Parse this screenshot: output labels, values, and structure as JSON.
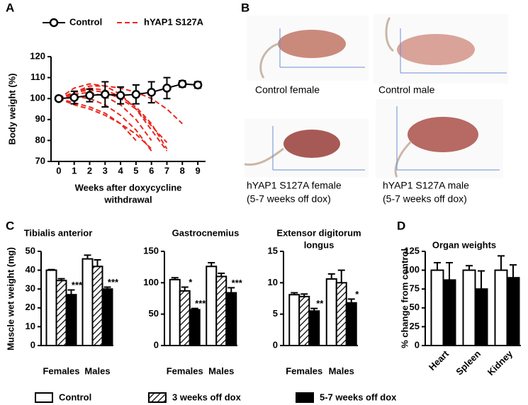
{
  "chart_data": [
    {
      "type": "line",
      "panel": "A",
      "ylabel": "Body weight (%)",
      "xlabel_lines": [
        "Weeks after doxycycline",
        "withdrawal"
      ],
      "x": [
        0,
        1,
        2,
        3,
        4,
        5,
        6,
        7,
        8,
        9
      ],
      "xlim": [
        -0.5,
        9.5
      ],
      "xticks": [
        0,
        1,
        2,
        3,
        4,
        5,
        6,
        7,
        8,
        9
      ],
      "ylim": [
        70,
        120
      ],
      "yticks": [
        70,
        80,
        90,
        100,
        110,
        120
      ],
      "series": [
        {
          "name": "Control",
          "color": "#000000",
          "values": [
            100,
            100.5,
            101.5,
            102,
            101.5,
            102,
            103,
            105,
            107,
            106.5
          ],
          "errors": [
            0,
            3,
            3,
            6,
            4,
            4.5,
            5,
            5,
            1.5,
            1.5
          ]
        },
        {
          "name": "hYAP1 S127A",
          "color": "#e8281e",
          "lines": [
            [
              100,
              103,
              106,
              106,
              105,
              103,
              100,
              95,
              88,
              null
            ],
            [
              100,
              103,
              105,
              104,
              101,
              96,
              88,
              76,
              null,
              null
            ],
            [
              100,
              102,
              103,
              101,
              97,
              90,
              80,
              null,
              null,
              null
            ],
            [
              100,
              101,
              100,
              97,
              92,
              85,
              75,
              null,
              null,
              null
            ],
            [
              100,
              98,
              96,
              93,
              88,
              80,
              null,
              null,
              null,
              null
            ],
            [
              100,
              103,
              104,
              103,
              100,
              95,
              87,
              79,
              null,
              null
            ],
            [
              100,
              97,
              95,
              92,
              88,
              83,
              76,
              null,
              null,
              null
            ],
            [
              100,
              105,
              107,
              106,
              102,
              95,
              85,
              75,
              null,
              null
            ]
          ]
        }
      ]
    },
    {
      "type": "bar",
      "panel": "C",
      "title_lines": [
        "Tibialis anterior"
      ],
      "categories": [
        "Females",
        "Males"
      ],
      "ylim": [
        0,
        50
      ],
      "yticks": [
        0,
        10,
        20,
        30,
        40,
        50
      ],
      "series": [
        {
          "fill": "white",
          "values": [
            40,
            46
          ],
          "errors": [
            0.3,
            2
          ],
          "significance": [
            null,
            null
          ]
        },
        {
          "fill": "hatch",
          "values": [
            34.5,
            42
          ],
          "errors": [
            1,
            3.5
          ],
          "significance": [
            null,
            null
          ]
        },
        {
          "fill": "black",
          "values": [
            27,
            30
          ],
          "errors": [
            2.5,
            1
          ],
          "significance": [
            "***",
            "***"
          ]
        }
      ]
    },
    {
      "type": "bar",
      "title_lines": [
        "Gastrocnemius"
      ],
      "categories": [
        "Females",
        "Males"
      ],
      "ylim": [
        0,
        150
      ],
      "yticks": [
        0,
        50,
        100,
        150
      ],
      "series": [
        {
          "fill": "white",
          "values": [
            105,
            126
          ],
          "errors": [
            3,
            6
          ],
          "significance": [
            null,
            null
          ]
        },
        {
          "fill": "hatch",
          "values": [
            87,
            110
          ],
          "errors": [
            6,
            5
          ],
          "significance": [
            "*",
            null
          ]
        },
        {
          "fill": "black",
          "values": [
            57,
            84
          ],
          "errors": [
            2,
            8
          ],
          "significance": [
            "***",
            "***"
          ]
        }
      ]
    },
    {
      "type": "bar",
      "title_lines": [
        "Extensor digitorum",
        "longus"
      ],
      "categories": [
        "Females",
        "Males"
      ],
      "ylim": [
        0,
        15
      ],
      "yticks": [
        0,
        5,
        10,
        15
      ],
      "series": [
        {
          "fill": "white",
          "values": [
            8.1,
            10.6
          ],
          "errors": [
            0.3,
            0.8
          ],
          "significance": [
            null,
            null
          ]
        },
        {
          "fill": "hatch",
          "values": [
            7.8,
            10
          ],
          "errors": [
            0.4,
            2
          ],
          "significance": [
            null,
            null
          ]
        },
        {
          "fill": "black",
          "values": [
            5.5,
            6.8
          ],
          "errors": [
            0.4,
            0.6
          ],
          "significance": [
            "**",
            "*"
          ]
        }
      ]
    },
    {
      "type": "bar",
      "panel": "D",
      "title_lines": [
        "Organ weights"
      ],
      "ylabel": "% change from control",
      "categories": [
        "Heart",
        "Spleen",
        "Kidney"
      ],
      "rotate_labels": true,
      "ylim": [
        0,
        125
      ],
      "yticks": [
        0,
        25,
        50,
        75,
        100,
        125
      ],
      "series": [
        {
          "fill": "white",
          "values": [
            100,
            100,
            100
          ],
          "errors": [
            10,
            6,
            19
          ],
          "significance": [
            null,
            null,
            null
          ]
        },
        {
          "fill": "black",
          "values": [
            87,
            75,
            90
          ],
          "errors": [
            23,
            24,
            17
          ],
          "significance": [
            null,
            null,
            null
          ]
        }
      ]
    }
  ],
  "muscle_ylabel": "Muscle wet weight (mg)",
  "legend": [
    {
      "name": "Control",
      "fill": "white"
    },
    {
      "name": "3 weeks off dox",
      "fill": "hatch"
    },
    {
      "name": "5-7 weeks off dox",
      "fill": "black"
    }
  ],
  "photos": {
    "panel": "B",
    "items": [
      {
        "caption_lines": [
          "Control female"
        ]
      },
      {
        "caption_lines": [
          "Control male"
        ]
      },
      {
        "caption_lines": [
          "hYAP1 S127A female",
          "(5-7 weeks off dox)"
        ]
      },
      {
        "caption_lines": [
          "hYAP1 S127A male",
          "(5-7 weeks off dox)"
        ]
      }
    ]
  }
}
